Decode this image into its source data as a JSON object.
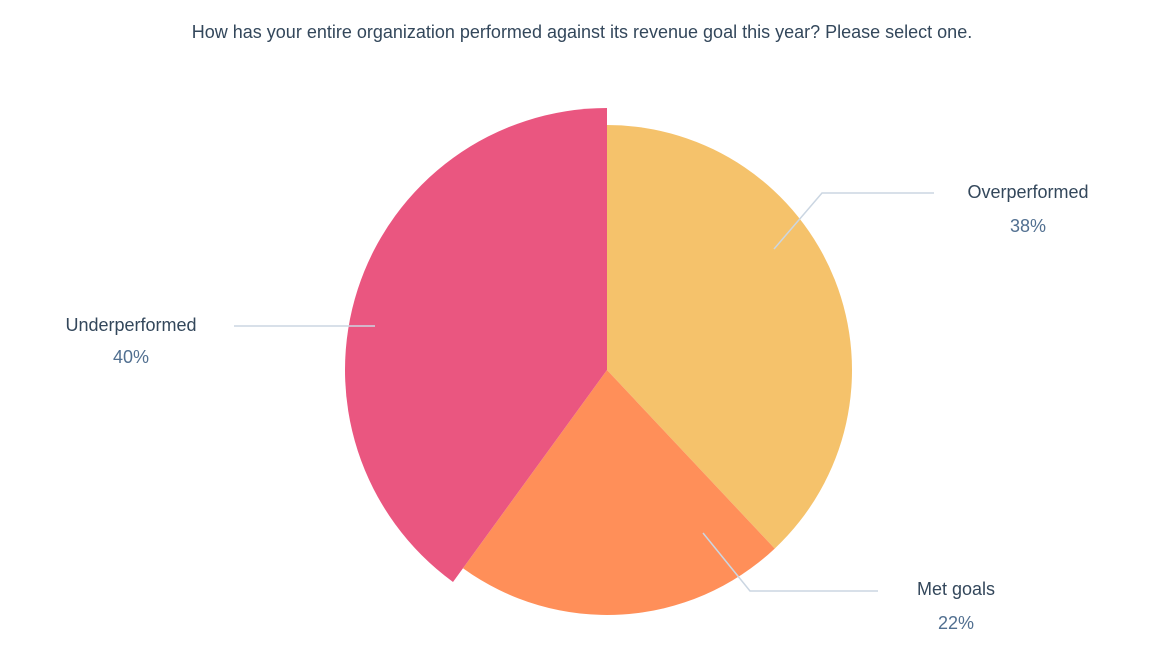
{
  "chart_data": {
    "type": "pie",
    "title": "How has your entire organization performed against its revenue goal this year? Please select one.",
    "slices": [
      {
        "label": "Overperformed",
        "value": 38,
        "display": "38%",
        "color": "#f5c26b"
      },
      {
        "label": "Met goals",
        "value": 22,
        "display": "22%",
        "color": "#ff8f59"
      },
      {
        "label": "Underperformed",
        "value": 40,
        "display": "40%",
        "color": "#ea5680",
        "exploded": true
      }
    ],
    "legend": "none"
  }
}
